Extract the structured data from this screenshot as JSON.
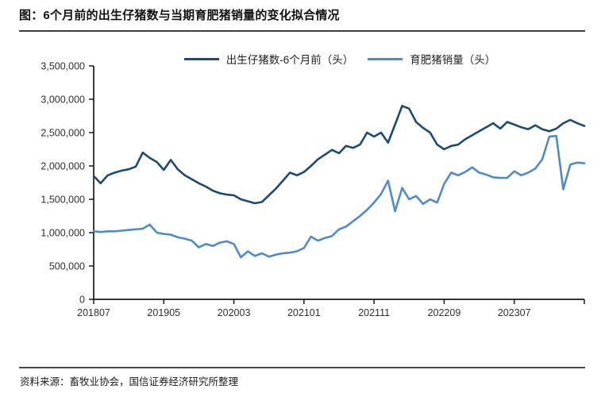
{
  "page": {
    "title": "图：6个月前的出生仔猪数与当期育肥猪销量的变化拟合情况",
    "source": "资料来源：畜牧业协会，国信证券经济研究所整理"
  },
  "colors": {
    "series_dark": "#1b4a73",
    "series_light": "#4e8bc8",
    "axis": "#1a1a1a",
    "rule": "#3d3d3d"
  },
  "chart_data": {
    "type": "line",
    "title": "图：6个月前的出生仔猪数与当期育肥猪销量的变化拟合情况",
    "xlabel": "",
    "ylabel": "",
    "grid": false,
    "legend_position": "top",
    "ylim": [
      0,
      3500000
    ],
    "y_ticks": [
      0,
      500000,
      1000000,
      1500000,
      2000000,
      2500000,
      3000000,
      3500000
    ],
    "x_tick_labels": [
      "201807",
      "201905",
      "202003",
      "202101",
      "202111",
      "202209",
      "202307"
    ],
    "x_tick_months": [
      0,
      10,
      20,
      30,
      40,
      50,
      60
    ],
    "axis_end_tick_month": 70,
    "series": [
      {
        "name": "出生仔猪数-6个月前（头）",
        "color": "#1b4a73",
        "values": [
          1850000,
          1740000,
          1860000,
          1900000,
          1930000,
          1950000,
          1990000,
          2200000,
          2120000,
          2060000,
          1940000,
          2090000,
          1950000,
          1860000,
          1800000,
          1740000,
          1690000,
          1630000,
          1590000,
          1570000,
          1560000,
          1500000,
          1470000,
          1440000,
          1460000,
          1560000,
          1660000,
          1780000,
          1900000,
          1860000,
          1910000,
          2000000,
          2100000,
          2170000,
          2240000,
          2190000,
          2300000,
          2270000,
          2320000,
          2500000,
          2440000,
          2500000,
          2350000,
          2620000,
          2900000,
          2860000,
          2660000,
          2570000,
          2500000,
          2320000,
          2250000,
          2300000,
          2320000,
          2400000,
          2460000,
          2520000,
          2580000,
          2640000,
          2560000,
          2660000,
          2620000,
          2580000,
          2550000,
          2610000,
          2550000,
          2520000,
          2560000,
          2640000,
          2690000,
          2640000,
          2600000
        ]
      },
      {
        "name": "育肥猪销量（头）",
        "color": "#4e8bc8",
        "values": [
          1020000,
          1010000,
          1020000,
          1020000,
          1030000,
          1040000,
          1050000,
          1060000,
          1120000,
          1000000,
          980000,
          970000,
          930000,
          910000,
          880000,
          780000,
          830000,
          800000,
          850000,
          870000,
          830000,
          630000,
          720000,
          650000,
          690000,
          640000,
          670000,
          690000,
          700000,
          720000,
          770000,
          940000,
          880000,
          920000,
          950000,
          1050000,
          1090000,
          1170000,
          1250000,
          1340000,
          1450000,
          1580000,
          1780000,
          1320000,
          1670000,
          1500000,
          1550000,
          1430000,
          1500000,
          1450000,
          1730000,
          1900000,
          1860000,
          1910000,
          1980000,
          1900000,
          1870000,
          1830000,
          1820000,
          1820000,
          1920000,
          1860000,
          1900000,
          1960000,
          2100000,
          2440000,
          2450000,
          1650000,
          2020000,
          2050000,
          2040000
        ]
      }
    ]
  }
}
